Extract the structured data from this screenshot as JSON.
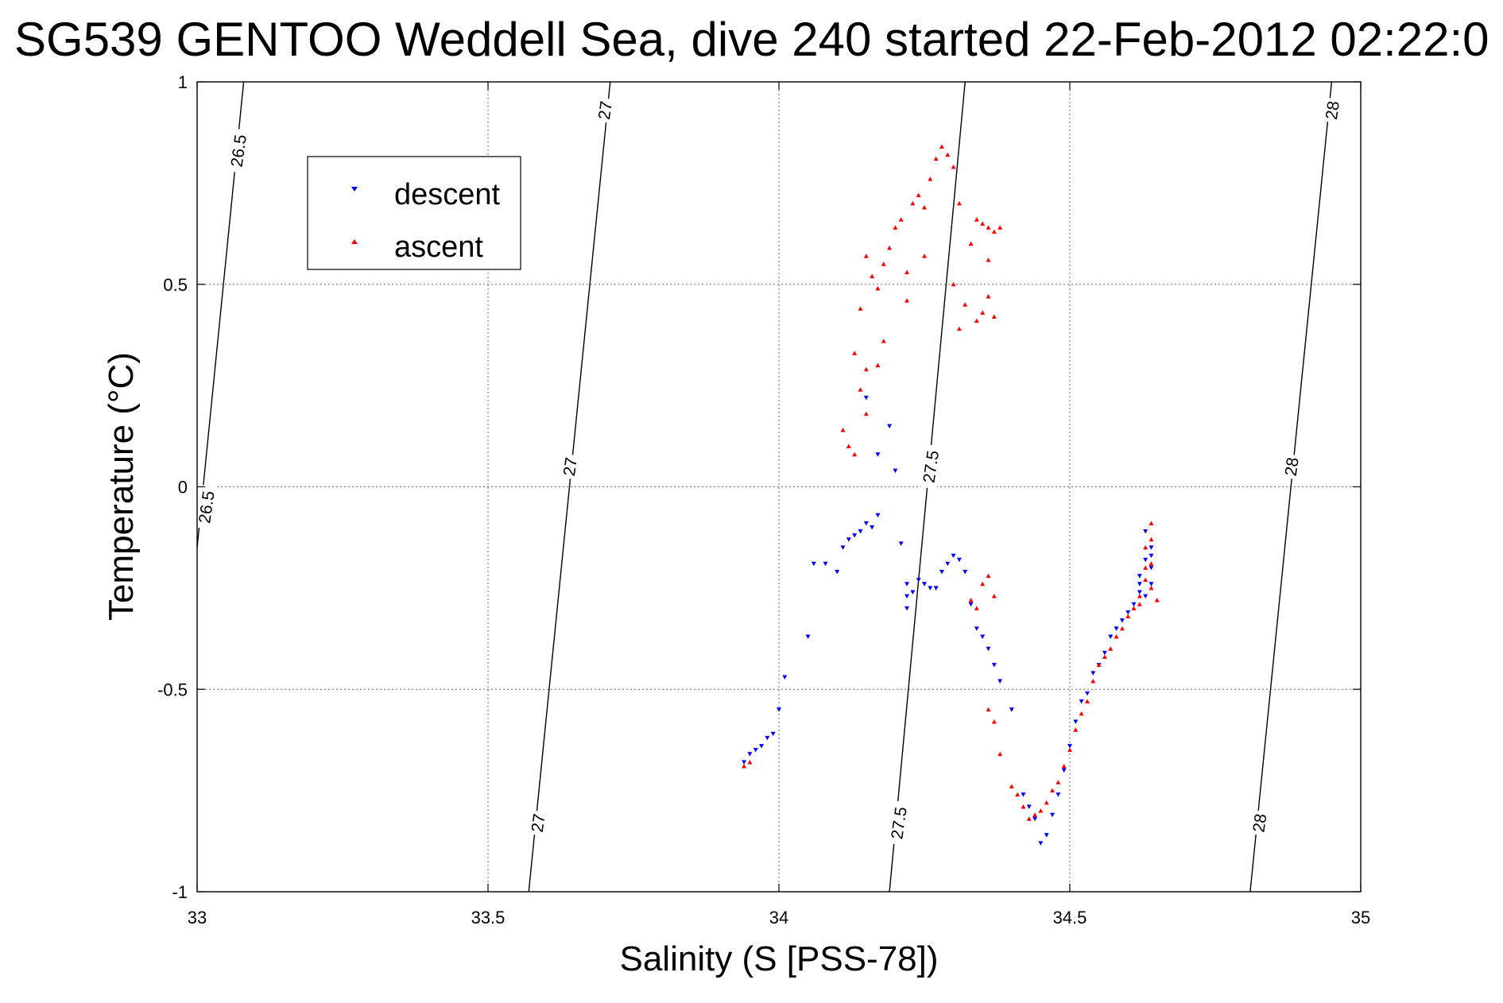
{
  "chart_data": {
    "type": "scatter",
    "title": "SG539 GENTOO Weddell Sea, dive 240 started 22-Feb-2012 02:22:0",
    "xlabel": "Salinity (S [PSS-78])",
    "ylabel": "Temperature (°C)",
    "xlim": [
      33,
      35
    ],
    "ylim": [
      -1,
      1
    ],
    "xticks": [
      33,
      33.5,
      34,
      34.5,
      35
    ],
    "xtick_labels": [
      "33",
      "33.5",
      "34",
      "34.5",
      "35"
    ],
    "yticks": [
      -1,
      -0.5,
      0,
      0.5,
      1
    ],
    "ytick_labels": [
      "-1",
      "-0.5",
      "0",
      "0.5",
      "1"
    ],
    "grid": true,
    "legend": {
      "placement": "top-left"
    },
    "density_contours": [
      {
        "level": 26.5,
        "label": "26.5",
        "points": [
          [
            33.0,
            -0.15
          ],
          [
            33.08,
            1.0
          ]
        ]
      },
      {
        "level": 27.0,
        "label": "27",
        "points": [
          [
            33.57,
            -1.0
          ],
          [
            33.71,
            1.0
          ]
        ]
      },
      {
        "level": 27.5,
        "label": "27.5",
        "points": [
          [
            34.19,
            -1.0
          ],
          [
            34.32,
            1.0
          ]
        ]
      },
      {
        "level": 28.0,
        "label": "28",
        "points": [
          [
            34.81,
            -1.0
          ],
          [
            34.95,
            1.0
          ]
        ]
      }
    ],
    "contour_labels": [
      {
        "text": "26.5",
        "s": 33.07,
        "t": 0.83
      },
      {
        "text": "26.5",
        "s": 33.015,
        "t": -0.05
      },
      {
        "text": "27",
        "s": 33.7,
        "t": 0.93
      },
      {
        "text": "27",
        "s": 33.64,
        "t": 0.05
      },
      {
        "text": "27",
        "s": 33.585,
        "t": -0.83
      },
      {
        "text": "27.5",
        "s": 34.26,
        "t": 0.05
      },
      {
        "text": "27.5",
        "s": 34.205,
        "t": -0.83
      },
      {
        "text": "28",
        "s": 34.95,
        "t": 0.93
      },
      {
        "text": "28",
        "s": 34.88,
        "t": 0.05
      },
      {
        "text": "28",
        "s": 34.825,
        "t": -0.83
      }
    ],
    "series": [
      {
        "name": "descent",
        "color": "#0000ff",
        "marker": "triangle-down",
        "points": [
          [
            33.94,
            -0.68
          ],
          [
            33.95,
            -0.66
          ],
          [
            33.96,
            -0.65
          ],
          [
            33.97,
            -0.64
          ],
          [
            33.98,
            -0.62
          ],
          [
            33.99,
            -0.61
          ],
          [
            34.0,
            -0.55
          ],
          [
            34.01,
            -0.47
          ],
          [
            34.05,
            -0.37
          ],
          [
            34.06,
            -0.19
          ],
          [
            34.08,
            -0.19
          ],
          [
            34.1,
            -0.21
          ],
          [
            34.11,
            -0.15
          ],
          [
            34.12,
            -0.13
          ],
          [
            34.13,
            -0.12
          ],
          [
            34.14,
            -0.11
          ],
          [
            34.15,
            -0.09
          ],
          [
            34.16,
            -0.1
          ],
          [
            34.17,
            -0.07
          ],
          [
            34.15,
            0.22
          ],
          [
            34.17,
            0.08
          ],
          [
            34.19,
            0.15
          ],
          [
            34.2,
            0.04
          ],
          [
            34.21,
            -0.14
          ],
          [
            34.22,
            -0.24
          ],
          [
            34.22,
            -0.27
          ],
          [
            34.22,
            -0.3
          ],
          [
            34.23,
            -0.26
          ],
          [
            34.24,
            -0.23
          ],
          [
            34.25,
            -0.24
          ],
          [
            34.26,
            -0.25
          ],
          [
            34.27,
            -0.25
          ],
          [
            34.28,
            -0.21
          ],
          [
            34.29,
            -0.19
          ],
          [
            34.3,
            -0.17
          ],
          [
            34.31,
            -0.18
          ],
          [
            34.32,
            -0.21
          ],
          [
            34.33,
            -0.29
          ],
          [
            34.34,
            -0.35
          ],
          [
            34.35,
            -0.37
          ],
          [
            34.36,
            -0.4
          ],
          [
            34.37,
            -0.44
          ],
          [
            34.38,
            -0.48
          ],
          [
            34.4,
            -0.55
          ],
          [
            34.42,
            -0.76
          ],
          [
            34.43,
            -0.79
          ],
          [
            34.44,
            -0.82
          ],
          [
            34.45,
            -0.88
          ],
          [
            34.46,
            -0.86
          ],
          [
            34.47,
            -0.81
          ],
          [
            34.48,
            -0.76
          ],
          [
            34.49,
            -0.7
          ],
          [
            34.5,
            -0.64
          ],
          [
            34.51,
            -0.58
          ],
          [
            34.52,
            -0.53
          ],
          [
            34.53,
            -0.51
          ],
          [
            34.54,
            -0.46
          ],
          [
            34.55,
            -0.44
          ],
          [
            34.56,
            -0.41
          ],
          [
            34.57,
            -0.37
          ],
          [
            34.58,
            -0.35
          ],
          [
            34.59,
            -0.33
          ],
          [
            34.6,
            -0.31
          ],
          [
            34.61,
            -0.29
          ],
          [
            34.62,
            -0.26
          ],
          [
            34.62,
            -0.22
          ],
          [
            34.63,
            -0.18
          ],
          [
            34.64,
            -0.15
          ],
          [
            34.63,
            -0.11
          ],
          [
            34.64,
            -0.2
          ],
          [
            34.64,
            -0.24
          ],
          [
            34.63,
            -0.27
          ],
          [
            34.62,
            -0.24
          ],
          [
            34.64,
            -0.17
          ]
        ]
      },
      {
        "name": "ascent",
        "color": "#ff0000",
        "marker": "triangle-up",
        "points": [
          [
            33.94,
            -0.69
          ],
          [
            33.95,
            -0.68
          ],
          [
            34.11,
            0.14
          ],
          [
            34.12,
            0.1
          ],
          [
            34.13,
            0.08
          ],
          [
            34.13,
            0.33
          ],
          [
            34.14,
            0.44
          ],
          [
            34.14,
            0.24
          ],
          [
            34.15,
            0.18
          ],
          [
            34.15,
            0.57
          ],
          [
            34.15,
            0.29
          ],
          [
            34.16,
            0.52
          ],
          [
            34.17,
            0.49
          ],
          [
            34.17,
            0.3
          ],
          [
            34.18,
            0.36
          ],
          [
            34.18,
            0.55
          ],
          [
            34.19,
            0.59
          ],
          [
            34.2,
            0.64
          ],
          [
            34.21,
            0.66
          ],
          [
            34.22,
            0.53
          ],
          [
            34.22,
            0.46
          ],
          [
            34.23,
            0.7
          ],
          [
            34.24,
            0.72
          ],
          [
            34.25,
            0.69
          ],
          [
            34.25,
            0.57
          ],
          [
            34.26,
            0.76
          ],
          [
            34.27,
            0.81
          ],
          [
            34.28,
            0.84
          ],
          [
            34.29,
            0.82
          ],
          [
            34.3,
            0.79
          ],
          [
            34.31,
            0.7
          ],
          [
            34.3,
            0.5
          ],
          [
            34.31,
            0.39
          ],
          [
            34.32,
            0.45
          ],
          [
            34.33,
            0.6
          ],
          [
            34.34,
            0.66
          ],
          [
            34.35,
            0.65
          ],
          [
            34.36,
            0.64
          ],
          [
            34.37,
            0.63
          ],
          [
            34.38,
            0.64
          ],
          [
            34.36,
            0.56
          ],
          [
            34.35,
            0.43
          ],
          [
            34.34,
            0.41
          ],
          [
            34.37,
            0.42
          ],
          [
            34.36,
            0.47
          ],
          [
            34.33,
            -0.28
          ],
          [
            34.34,
            -0.3
          ],
          [
            34.35,
            -0.24
          ],
          [
            34.37,
            -0.27
          ],
          [
            34.36,
            -0.22
          ],
          [
            34.36,
            -0.55
          ],
          [
            34.37,
            -0.58
          ],
          [
            34.38,
            -0.66
          ],
          [
            34.4,
            -0.74
          ],
          [
            34.41,
            -0.76
          ],
          [
            34.42,
            -0.79
          ],
          [
            34.43,
            -0.82
          ],
          [
            34.44,
            -0.81
          ],
          [
            34.45,
            -0.8
          ],
          [
            34.46,
            -0.78
          ],
          [
            34.47,
            -0.75
          ],
          [
            34.48,
            -0.73
          ],
          [
            34.49,
            -0.69
          ],
          [
            34.5,
            -0.65
          ],
          [
            34.51,
            -0.6
          ],
          [
            34.52,
            -0.56
          ],
          [
            34.53,
            -0.53
          ],
          [
            34.54,
            -0.48
          ],
          [
            34.55,
            -0.44
          ],
          [
            34.56,
            -0.42
          ],
          [
            34.57,
            -0.4
          ],
          [
            34.58,
            -0.37
          ],
          [
            34.59,
            -0.35
          ],
          [
            34.6,
            -0.32
          ],
          [
            34.61,
            -0.3
          ],
          [
            34.62,
            -0.27
          ],
          [
            34.63,
            -0.23
          ],
          [
            34.64,
            -0.19
          ],
          [
            34.64,
            -0.13
          ],
          [
            34.64,
            -0.09
          ],
          [
            34.63,
            -0.15
          ],
          [
            34.63,
            -0.2
          ],
          [
            34.65,
            -0.28
          ],
          [
            34.62,
            -0.29
          ],
          [
            34.64,
            -0.25
          ]
        ]
      }
    ]
  }
}
